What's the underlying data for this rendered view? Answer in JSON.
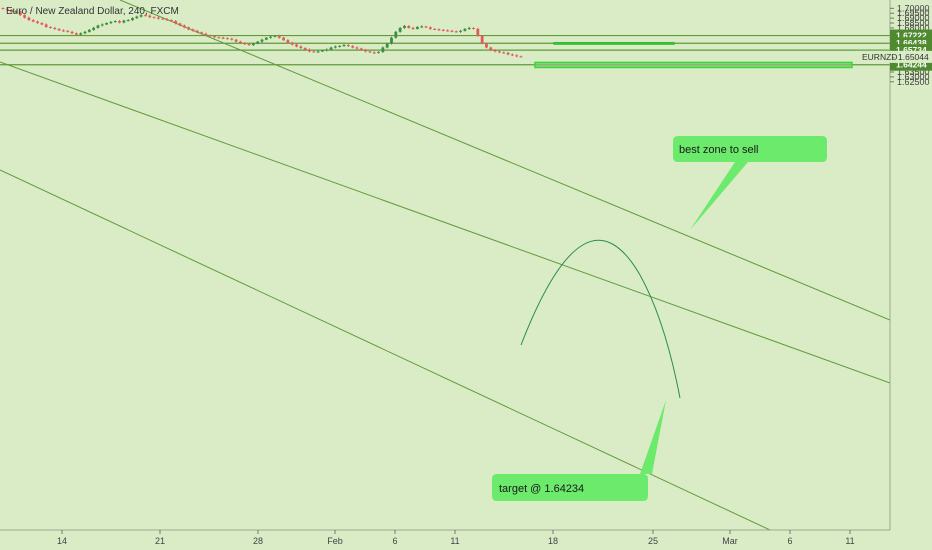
{
  "header": {
    "title": "Euro / New Zealand Dollar, 240, FXCM"
  },
  "chart_data": {
    "type": "candlestick",
    "instrument": "EURNZD",
    "ylim": [
      1.6225,
      1.7015
    ],
    "price_ticks": [
      "1.70000",
      "1.69500",
      "1.69000",
      "1.68500",
      "1.68000",
      "1.67500",
      "1.67000",
      "1.66500",
      "1.66000",
      "1.65500",
      "1.65000",
      "1.64500",
      "1.64000",
      "1.63500",
      "1.63000",
      "1.62500"
    ],
    "date_ticks": [
      "14",
      "21",
      "28",
      "Feb",
      "6",
      "11",
      "18",
      "25",
      "Mar",
      "6",
      "11"
    ],
    "current_price": {
      "symbol": "EURNZD",
      "value": "1.65044"
    },
    "levels": [
      {
        "value": 1.67222,
        "label": "1.67222"
      },
      {
        "value": 1.66438,
        "label": "1.66438"
      },
      {
        "value": 1.65734,
        "label": "1.65734"
      },
      {
        "value": 1.64244,
        "label": "1.64244"
      }
    ],
    "annotations": {
      "sell_zone": {
        "text": "best zone to sell"
      },
      "target": {
        "text": "target @ 1.64234"
      }
    },
    "candles_close": [
      1.6995,
      1.6985,
      1.696,
      1.697,
      1.693,
      1.6905,
      1.688,
      1.6865,
      1.685,
      1.6835,
      1.681,
      1.68,
      1.679,
      1.6775,
      1.677,
      1.676,
      1.6745,
      1.673,
      1.6745,
      1.676,
      1.678,
      1.68,
      1.6825,
      1.6835,
      1.685,
      1.686,
      1.687,
      1.6855,
      1.6875,
      1.688,
      1.69,
      1.6915,
      1.693,
      1.6925,
      1.691,
      1.6905,
      1.6895,
      1.689,
      1.688,
      1.687,
      1.6845,
      1.6825,
      1.6805,
      1.6785,
      1.677,
      1.6755,
      1.674,
      1.6725,
      1.6715,
      1.6705,
      1.67,
      1.6695,
      1.669,
      1.668,
      1.666,
      1.6645,
      1.6635,
      1.6625,
      1.664,
      1.666,
      1.668,
      1.67,
      1.671,
      1.672,
      1.67,
      1.6675,
      1.665,
      1.663,
      1.661,
      1.6595,
      1.658,
      1.656,
      1.6555,
      1.656,
      1.657,
      1.658,
      1.66,
      1.661,
      1.6615,
      1.6625,
      1.6615,
      1.66,
      1.659,
      1.6575,
      1.656,
      1.655,
      1.6545,
      1.6555,
      1.66,
      1.664,
      1.67,
      1.676,
      1.68,
      1.682,
      1.68,
      1.679,
      1.681,
      1.6815,
      1.6805,
      1.679,
      1.6785,
      1.678,
      1.6775,
      1.677,
      1.6765,
      1.676,
      1.677,
      1.679,
      1.68,
      1.679,
      1.672,
      1.664,
      1.66,
      1.6575,
      1.656,
      1.655,
      1.6545,
      1.653,
      1.652,
      1.651,
      1.6505
    ]
  }
}
